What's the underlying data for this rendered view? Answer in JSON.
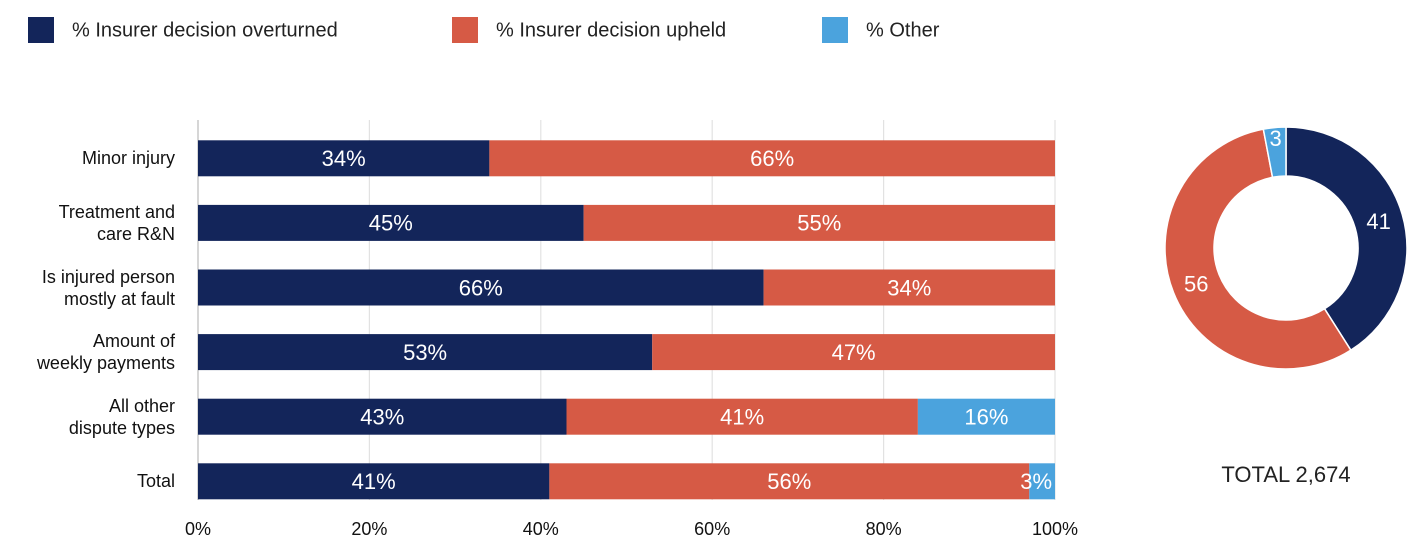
{
  "chart_data": [
    {
      "type": "bar",
      "orientation": "horizontal",
      "stacked": true,
      "legend": "top-left",
      "grid": true,
      "categories": [
        "Minor injury",
        "Treatment and\ncare R&N",
        "Is injured person\nmostly at fault",
        "Amount of\nweekly payments",
        "All other\ndispute types",
        "Total"
      ],
      "series": [
        {
          "name": "% Insurer decision overturned",
          "color": "#13255a",
          "values": [
            34,
            45,
            66,
            53,
            43,
            41
          ],
          "value_labels": [
            "34%",
            "45%",
            "66%",
            "53%",
            "43%",
            "41%"
          ]
        },
        {
          "name": "% Insurer decision upheld",
          "color": "#d65a45",
          "values": [
            66,
            55,
            34,
            47,
            41,
            56
          ],
          "value_labels": [
            "66%",
            "55%",
            "34%",
            "47%",
            "41%",
            "56%"
          ]
        },
        {
          "name": "% Other",
          "color": "#4ba3dd",
          "values": [
            null,
            null,
            null,
            null,
            16,
            3
          ],
          "value_labels": [
            null,
            null,
            null,
            null,
            "16%",
            "3%"
          ]
        }
      ],
      "xlim": [
        0,
        100
      ],
      "xticks": [
        {
          "value": 0,
          "label": "0%"
        },
        {
          "value": 20,
          "label": "20%"
        },
        {
          "value": 40,
          "label": "40%"
        },
        {
          "value": 60,
          "label": "60%"
        },
        {
          "value": 80,
          "label": "80%"
        },
        {
          "value": 100,
          "label": "100%"
        }
      ]
    },
    {
      "type": "pie",
      "donut": true,
      "values": [
        41,
        56,
        3
      ],
      "colors": [
        "#13255a",
        "#d65a45",
        "#4ba3dd"
      ],
      "annotation": "TOTAL 2,674"
    }
  ]
}
